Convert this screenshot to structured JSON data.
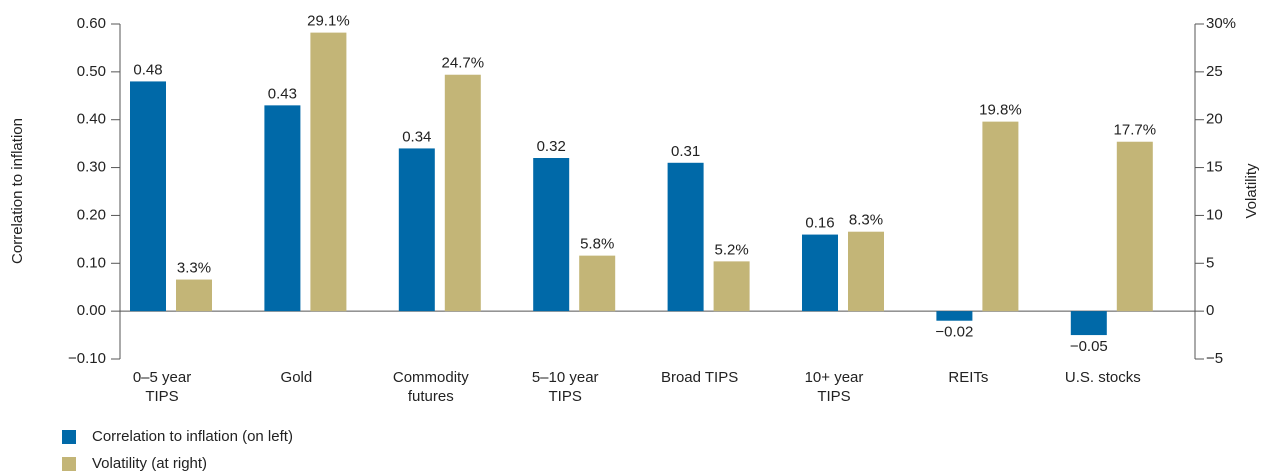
{
  "chart_data": {
    "type": "bar",
    "y_label": "Correlation to inflation",
    "y2_label": "Volatility",
    "categories": [
      [
        "0–5 year",
        "TIPS"
      ],
      [
        "Gold"
      ],
      [
        "Commodity",
        "futures"
      ],
      [
        "5–10 year",
        "TIPS"
      ],
      [
        "Broad TIPS"
      ],
      [
        "10+ year",
        "TIPS"
      ],
      [
        "REITs"
      ],
      [
        "U.S. stocks"
      ]
    ],
    "series": [
      {
        "name": "Correlation to inflation (on left)",
        "color": "#0069a8",
        "axis": "y",
        "values": [
          0.48,
          0.43,
          0.34,
          0.32,
          0.31,
          0.16,
          -0.02,
          -0.05
        ],
        "value_labels": [
          "0.48",
          "0.43",
          "0.34",
          "0.32",
          "0.31",
          "0.16",
          "−0.02",
          "−0.05"
        ]
      },
      {
        "name": "Volatility (at right)",
        "color": "#c3b577",
        "axis": "y2",
        "values": [
          3.3,
          29.1,
          24.7,
          5.8,
          5.2,
          8.3,
          19.8,
          17.7
        ],
        "value_labels": [
          "3.3%",
          "29.1%",
          "24.7%",
          "5.8%",
          "5.2%",
          "8.3%",
          "19.8%",
          "17.7%"
        ]
      }
    ],
    "ylim": [
      -0.1,
      0.6
    ],
    "yticks": [
      {
        "value": -0.1,
        "label": "−0.10"
      },
      {
        "value": 0,
        "label": "0.00"
      },
      {
        "value": 0.1,
        "label": "0.10"
      },
      {
        "value": 0.2,
        "label": "0.20"
      },
      {
        "value": 0.3,
        "label": "0.30"
      },
      {
        "value": 0.4,
        "label": "0.40"
      },
      {
        "value": 0.5,
        "label": "0.50"
      },
      {
        "value": 0.6,
        "label": "0.60"
      }
    ],
    "y2lim": [
      -5,
      30
    ],
    "y2ticks": [
      {
        "value": -5,
        "label": "−5"
      },
      0,
      5,
      10,
      15,
      20,
      25,
      {
        "value": 30,
        "label": "30%"
      }
    ],
    "legend": "bottom-left"
  }
}
